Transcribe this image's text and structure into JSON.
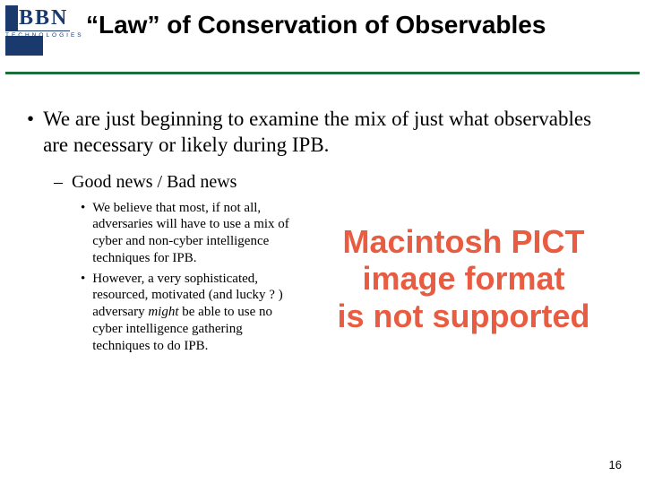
{
  "logo": {
    "letters": "BBN",
    "sub": "TECHNOLOGIES"
  },
  "title": "“Law” of Conservation of Observables",
  "colors": {
    "brand_blue": "#1a3a6e",
    "rule_green": "#1a6e3a",
    "pict_red": "#e85c41",
    "background": "#ffffff"
  },
  "body": {
    "l1": "We are just beginning to examine the mix of just what observables are necessary or likely during IPB.",
    "l2": "Good news / Bad news",
    "l3a": "We believe that most, if not all, adversaries will have to use a mix of cyber and non-cyber intelligence techniques for IPB.",
    "l3b_pre": "However, a very sophisticated, resourced, motivated (and lucky ? ) adversary ",
    "l3b_em": "might",
    "l3b_post": " be able to use no cyber intelligence gathering techniques to do IPB."
  },
  "pict_placeholder": {
    "line1": "Macintosh PICT",
    "line2": "image format",
    "line3": "is not supported"
  },
  "page_number": "16"
}
